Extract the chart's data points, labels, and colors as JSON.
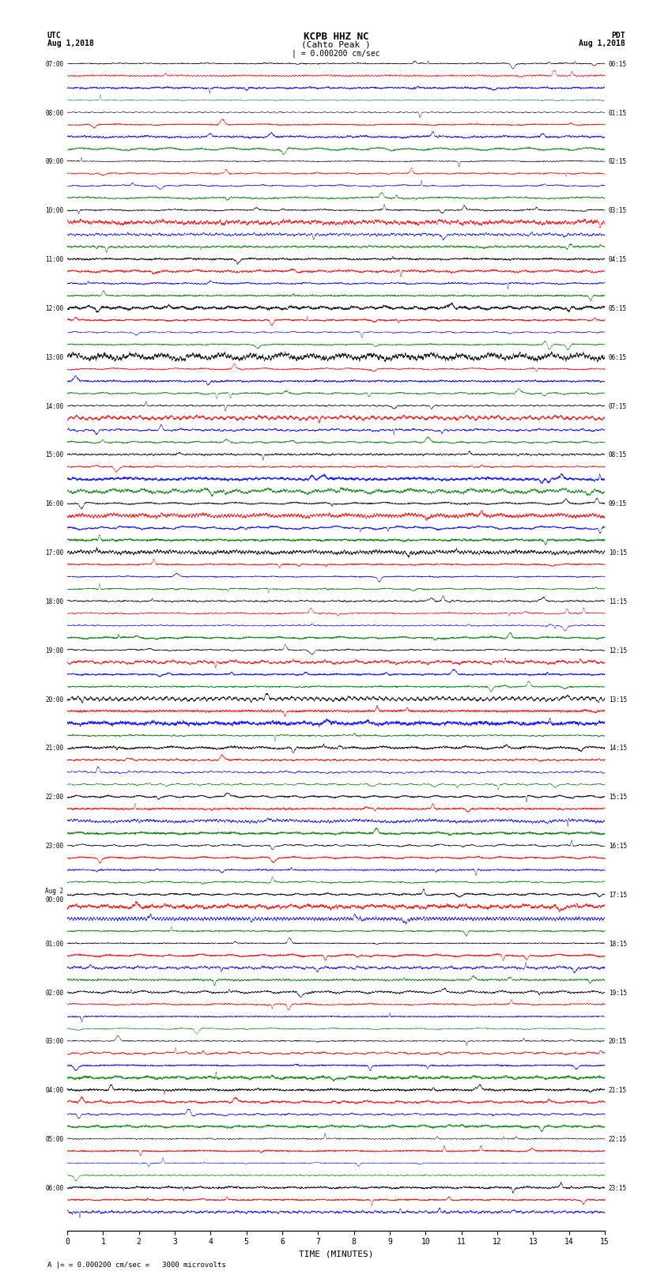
{
  "title_line1": "KCPB HHZ NC",
  "title_line2": "(Cahto Peak )",
  "scale_label": "= 0.000200 cm/sec",
  "footer_label": "= 0.000200 cm/sec =   3000 microvolts",
  "left_header": "UTC\nAug 1,2018",
  "right_header": "PDT\nAug 1,2018",
  "xlabel": "TIME (MINUTES)",
  "xlim": [
    0,
    15
  ],
  "bg_color": "#ffffff",
  "trace_colors": [
    "#000000",
    "#ff0000",
    "#0000ff",
    "#008000"
  ],
  "left_times": [
    "07:00",
    "",
    "",
    "",
    "08:00",
    "",
    "",
    "",
    "09:00",
    "",
    "",
    "",
    "10:00",
    "",
    "",
    "",
    "11:00",
    "",
    "",
    "",
    "12:00",
    "",
    "",
    "",
    "13:00",
    "",
    "",
    "",
    "14:00",
    "",
    "",
    "",
    "15:00",
    "",
    "",
    "",
    "16:00",
    "",
    "",
    "",
    "17:00",
    "",
    "",
    "",
    "18:00",
    "",
    "",
    "",
    "19:00",
    "",
    "",
    "",
    "20:00",
    "",
    "",
    "",
    "21:00",
    "",
    "",
    "",
    "22:00",
    "",
    "",
    "",
    "23:00",
    "",
    "",
    "",
    "Aug 2\n00:00",
    "",
    "",
    "",
    "01:00",
    "",
    "",
    "",
    "02:00",
    "",
    "",
    "",
    "03:00",
    "",
    "",
    "",
    "04:00",
    "",
    "",
    "",
    "05:00",
    "",
    "",
    "",
    "06:00",
    "",
    ""
  ],
  "right_times": [
    "00:15",
    "",
    "",
    "",
    "01:15",
    "",
    "",
    "",
    "02:15",
    "",
    "",
    "",
    "03:15",
    "",
    "",
    "",
    "04:15",
    "",
    "",
    "",
    "05:15",
    "",
    "",
    "",
    "06:15",
    "",
    "",
    "",
    "07:15",
    "",
    "",
    "",
    "08:15",
    "",
    "",
    "",
    "09:15",
    "",
    "",
    "",
    "10:15",
    "",
    "",
    "",
    "11:15",
    "",
    "",
    "",
    "12:15",
    "",
    "",
    "",
    "13:15",
    "",
    "",
    "",
    "14:15",
    "",
    "",
    "",
    "15:15",
    "",
    "",
    "",
    "16:15",
    "",
    "",
    "",
    "17:15",
    "",
    "",
    "",
    "18:15",
    "",
    "",
    "",
    "19:15",
    "",
    "",
    "",
    "20:15",
    "",
    "",
    "",
    "21:15",
    "",
    "",
    "",
    "22:15",
    "",
    "",
    "",
    "23:15",
    "",
    ""
  ],
  "n_rows": 95,
  "n_cols": 9000,
  "amplitude": 0.3,
  "noise_seed": 42
}
